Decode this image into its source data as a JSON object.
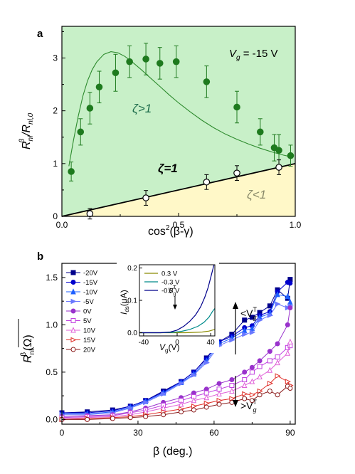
{
  "chart_data": [
    {
      "panel": "a",
      "type": "scatter",
      "xlabel_main": "cos",
      "xlabel_sup": "2",
      "xlabel_rest": "(β-γ)",
      "ylabel_R": "R",
      "ylabel_R_sub": "nl",
      "ylabel_R_sup": "β",
      "ylabel_slash": "/R",
      "ylabel_R0_sub": "nl,0",
      "xlim": [
        0.0,
        1.0
      ],
      "ylim": [
        0,
        3.6
      ],
      "xticks": [
        "0.0",
        "0.5",
        "1.0"
      ],
      "yticks": [
        "0",
        "1",
        "2",
        "3"
      ],
      "annotations": {
        "vg_label": "V",
        "vg_sub": "g",
        "vg_value": " = -15 V",
        "zeta_gt": "ζ>1",
        "zeta_eq": "ζ=1",
        "zeta_lt": "ζ<1"
      },
      "colors": {
        "region_upper": "#c8f0c8",
        "region_lower": "#fff8c8",
        "filled_marker": "#1e7a1e",
        "fit_line": "#2e8b2e",
        "zeta_gt_text": "#1b6b4a",
        "zeta_lt_text": "#8a8a6a"
      },
      "series": [
        {
          "marker": "filled",
          "x": [
            0.04,
            0.08,
            0.12,
            0.16,
            0.23,
            0.29,
            0.36,
            0.42,
            0.49,
            0.62,
            0.75,
            0.85,
            0.91,
            0.93,
            0.98
          ],
          "y": [
            0.85,
            1.6,
            2.05,
            2.45,
            2.72,
            2.93,
            2.98,
            2.9,
            2.93,
            2.55,
            2.07,
            1.6,
            1.3,
            1.25,
            1.15
          ],
          "err": [
            0.18,
            0.25,
            0.3,
            0.3,
            0.35,
            0.3,
            0.3,
            0.3,
            0.3,
            0.3,
            0.3,
            0.25,
            0.25,
            0.3,
            0.2
          ]
        },
        {
          "marker": "open",
          "x": [
            0.12,
            0.36,
            0.62,
            0.75,
            0.93
          ],
          "y": [
            0.05,
            0.35,
            0.65,
            0.82,
            0.93
          ],
          "err": [
            0.1,
            0.14,
            0.14,
            0.14,
            0.14
          ]
        }
      ],
      "fit_curve": {
        "x": [
          0.03,
          0.05,
          0.07,
          0.09,
          0.11,
          0.13,
          0.15,
          0.18,
          0.21,
          0.24,
          0.27,
          0.3,
          0.34,
          0.38,
          0.42,
          0.46,
          0.5,
          0.55,
          0.6,
          0.65,
          0.7,
          0.75,
          0.8,
          0.85,
          0.9,
          0.95,
          0.98
        ],
        "y": [
          0.95,
          1.45,
          1.9,
          2.28,
          2.57,
          2.78,
          2.93,
          3.07,
          3.12,
          3.1,
          3.03,
          2.93,
          2.78,
          2.62,
          2.46,
          2.3,
          2.15,
          1.98,
          1.82,
          1.68,
          1.56,
          1.46,
          1.37,
          1.29,
          1.22,
          1.16,
          1.13
        ]
      },
      "zeta1_line": {
        "x": [
          0.0,
          1.0
        ],
        "y": [
          0.0,
          1.0
        ]
      }
    },
    {
      "panel": "b",
      "type": "line",
      "xlabel": "β (deg.)",
      "ylabel_R": "R",
      "ylabel_R_sub": "nl",
      "ylabel_R_sup": "β",
      "ylabel_unit": "(Ω)",
      "xlim": [
        0,
        92
      ],
      "ylim": [
        -0.05,
        1.65
      ],
      "xticks": [
        "0",
        "30",
        "60",
        "90"
      ],
      "yticks": [
        "0.0",
        "0.5",
        "1.0",
        "1.5"
      ],
      "x": [
        0,
        10,
        20,
        27,
        33,
        40,
        47,
        52,
        57,
        62,
        67,
        72,
        75,
        78,
        82,
        85,
        89,
        90
      ],
      "series": [
        {
          "name": "-20V",
          "color": "#00008b",
          "marker": "square-filled",
          "values": [
            0.07,
            0.08,
            0.1,
            0.14,
            0.2,
            0.3,
            0.4,
            0.5,
            0.65,
            0.82,
            0.9,
            1.05,
            1.08,
            1.13,
            1.2,
            1.37,
            1.28,
            1.48
          ]
        },
        {
          "name": "-15V",
          "color": "#0000cd",
          "marker": "circle-filled",
          "values": [
            0.07,
            0.07,
            0.09,
            0.14,
            0.2,
            0.29,
            0.4,
            0.5,
            0.64,
            0.82,
            0.88,
            0.97,
            0.99,
            1.1,
            1.14,
            1.35,
            1.45,
            1.44
          ]
        },
        {
          "name": "-10V",
          "color": "#1e5fff",
          "marker": "triangle-up-filled",
          "values": [
            0.06,
            0.06,
            0.08,
            0.13,
            0.19,
            0.28,
            0.39,
            0.48,
            0.62,
            0.8,
            0.86,
            0.94,
            0.96,
            1.08,
            1.12,
            1.32,
            1.3,
            1.24
          ]
        },
        {
          "name": "-5V",
          "color": "#6a78ff",
          "marker": "triangle-right-filled",
          "values": [
            0.05,
            0.05,
            0.07,
            0.12,
            0.18,
            0.27,
            0.38,
            0.47,
            0.6,
            0.78,
            0.84,
            0.9,
            0.92,
            1.05,
            1.1,
            1.22,
            1.18,
            1.2
          ]
        },
        {
          "name": "0V",
          "color": "#9932cc",
          "marker": "circle-filled",
          "values": [
            0.03,
            0.04,
            0.05,
            0.08,
            0.12,
            0.18,
            0.23,
            0.28,
            0.32,
            0.38,
            0.42,
            0.5,
            0.55,
            0.62,
            0.72,
            0.8,
            1.0,
            1.18
          ]
        },
        {
          "name": "5V",
          "color": "#c040e0",
          "marker": "square-open",
          "values": [
            0.02,
            0.03,
            0.04,
            0.07,
            0.1,
            0.15,
            0.2,
            0.24,
            0.28,
            0.32,
            0.36,
            0.42,
            0.5,
            0.56,
            0.62,
            0.66,
            0.76,
            0.78
          ]
        },
        {
          "name": "10V",
          "color": "#e060d8",
          "marker": "triangle-up-open",
          "values": [
            0.01,
            0.02,
            0.03,
            0.05,
            0.08,
            0.12,
            0.16,
            0.2,
            0.23,
            0.27,
            0.3,
            0.36,
            0.4,
            0.45,
            0.52,
            0.6,
            0.7,
            0.82
          ]
        },
        {
          "name": "15V",
          "color": "#e0302a",
          "marker": "triangle-right-open",
          "values": [
            0.0,
            0.01,
            0.02,
            0.03,
            0.05,
            0.08,
            0.11,
            0.14,
            0.17,
            0.2,
            0.22,
            0.27,
            0.26,
            0.3,
            0.38,
            0.46,
            0.4,
            0.36
          ]
        },
        {
          "name": "20V",
          "color": "#8b1a1a",
          "marker": "circle-open",
          "values": [
            0.0,
            0.0,
            0.01,
            0.02,
            0.03,
            0.05,
            0.08,
            0.1,
            0.13,
            0.16,
            0.18,
            0.22,
            0.2,
            0.26,
            0.3,
            0.26,
            0.35,
            0.33
          ]
        }
      ],
      "annotations": {
        "upper_label": "<V",
        "upper_sub": "g",
        "upper_sup": "T",
        "lower_label": ">V",
        "lower_sub": "g",
        "lower_sup": "T"
      },
      "inset": {
        "type": "line",
        "xlabel": "V",
        "xlabel_sub": "g",
        "xlabel_unit": "(V)",
        "ylabel": "I",
        "ylabel_sub": "ds",
        "ylabel_unit": "(μA)",
        "xlim": [
          -45,
          45
        ],
        "ylim": [
          -0.01,
          0.21
        ],
        "xticks": [
          "-40",
          "0",
          "40"
        ],
        "yticks": [
          "0.0",
          "0.1",
          "0.2"
        ],
        "vt_label": "V",
        "vt_sub": "g",
        "vt_sup": "T",
        "series": [
          {
            "name": "0.3 V",
            "color": "#8b8b00",
            "x": [
              -45,
              -20,
              0,
              10,
              20,
              30,
              38,
              42,
              45
            ],
            "y": [
              0.0,
              0.0,
              0.0,
              0.0,
              0.001,
              0.002,
              0.005,
              0.008,
              0.01
            ]
          },
          {
            "name": "-0.3 V",
            "color": "#008b8b",
            "x": [
              -45,
              -20,
              -5,
              5,
              15,
              25,
              32,
              38,
              42,
              45
            ],
            "y": [
              0.0,
              0.0,
              0.001,
              0.004,
              0.01,
              0.02,
              0.032,
              0.048,
              0.065,
              0.075
            ]
          },
          {
            "name": "-0.5 V",
            "color": "#00008b",
            "x": [
              -45,
              -20,
              -8,
              0,
              8,
              15,
              22,
              28,
              33,
              37,
              41,
              44
            ],
            "y": [
              0.0,
              0.0,
              0.002,
              0.008,
              0.02,
              0.035,
              0.055,
              0.08,
              0.11,
              0.14,
              0.18,
              0.21
            ]
          }
        ]
      }
    }
  ]
}
